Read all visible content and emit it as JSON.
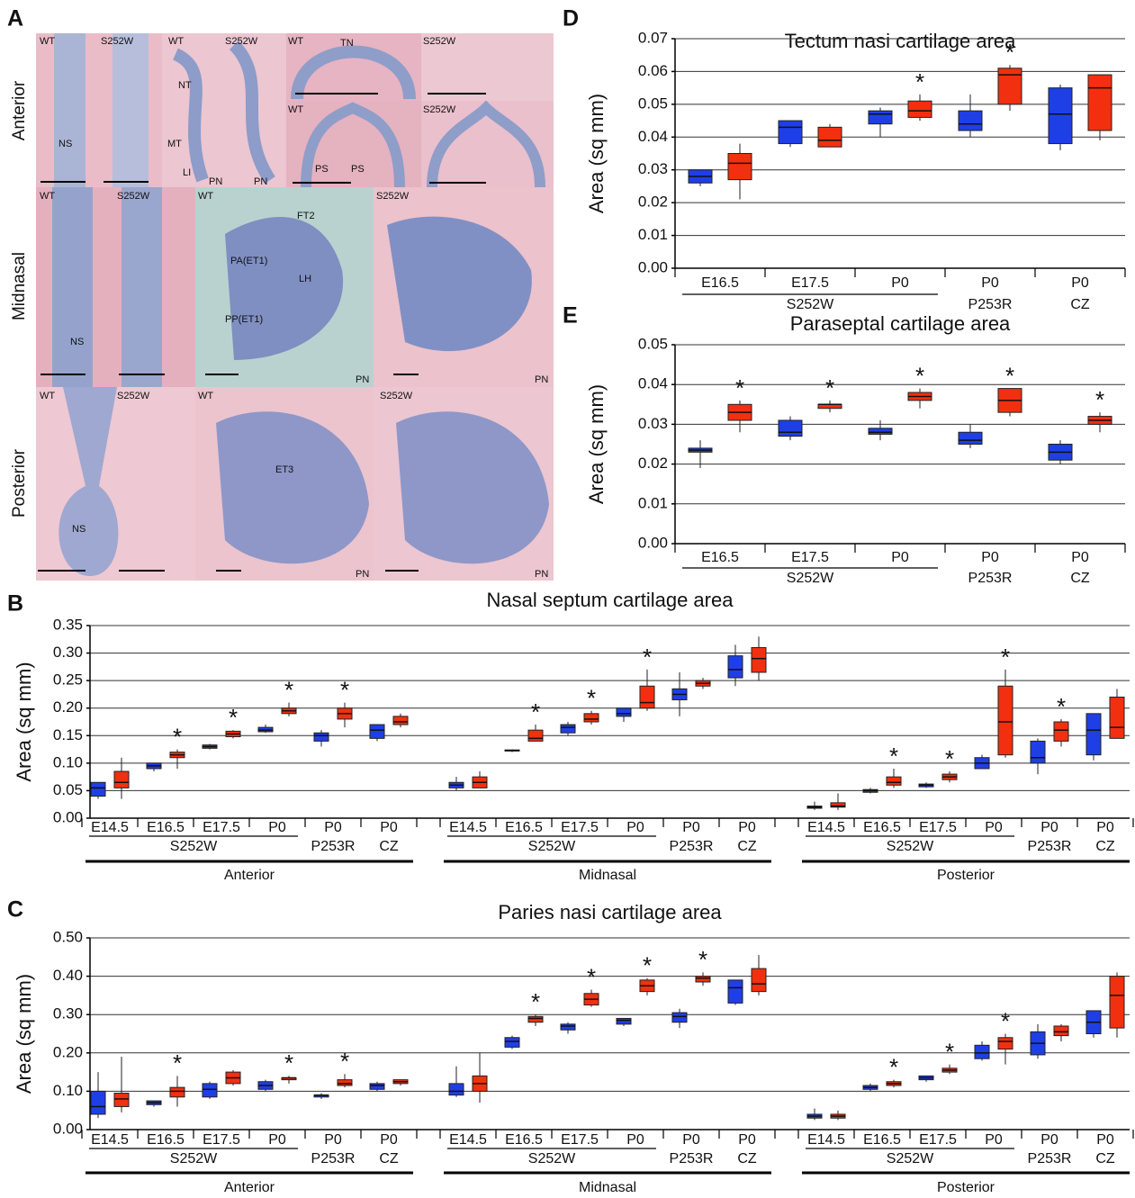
{
  "panel_a": {
    "panel": "A",
    "rows": [
      "Anterior",
      "Midnasal",
      "Posterior"
    ],
    "labels": [
      "WT",
      "S252W",
      "WT",
      "S252W",
      "WT",
      "TN",
      "S252W",
      "NT",
      "MT",
      "LI",
      "PN",
      "PN",
      "WT",
      "S252W",
      "PS",
      "PS",
      "NS",
      "WT",
      "S252W",
      "WT",
      "S252W",
      "FT2",
      "PA(ET1)",
      "LH",
      "PP(ET1)",
      "NS",
      "PN",
      "PN",
      "WT",
      "S252W",
      "WT",
      "S252W",
      "ET3",
      "NS",
      "PN",
      "PN"
    ]
  },
  "chart_data": [
    {
      "type": "box",
      "panel": "B",
      "title": "Nasal septum cartilage area",
      "ylabel": "Area (sq mm)",
      "ylim": [
        0,
        0.35
      ],
      "yticks": [
        {
          "value": 0,
          "label": "0.00"
        },
        0.05,
        {
          "value": 0.1,
          "label": "0.10"
        },
        0.15,
        {
          "value": 0.2,
          "label": "0.20"
        },
        0.25,
        {
          "value": 0.3,
          "label": "0.30"
        },
        0.35
      ],
      "grid": true,
      "categories": [
        "E14.5",
        "E16.5",
        "E17.5",
        "P0",
        "P0",
        "P0",
        "E14.5",
        "E16.5",
        "E17.5",
        "P0",
        "P0",
        "P0",
        "E14.5",
        "E16.5",
        "E17.5",
        "P0",
        "P0",
        "P0"
      ],
      "groups": [
        {
          "label": "S252W",
          "from": 0,
          "to": 3
        },
        {
          "label": "P253R",
          "from": 4,
          "to": 4
        },
        {
          "label": "CZ",
          "from": 5,
          "to": 5
        },
        {
          "label": "S252W",
          "from": 6,
          "to": 9
        },
        {
          "label": "P253R",
          "from": 10,
          "to": 10
        },
        {
          "label": "CZ",
          "from": 11,
          "to": 11
        },
        {
          "label": "S252W",
          "from": 12,
          "to": 15
        },
        {
          "label": "P253R",
          "from": 16,
          "to": 16
        },
        {
          "label": "CZ",
          "from": 17,
          "to": 17
        }
      ],
      "regions": [
        {
          "label": "Anterior",
          "from": 0,
          "to": 5
        },
        {
          "label": "Midnasal",
          "from": 6,
          "to": 11
        },
        {
          "label": "Posterior",
          "from": 12,
          "to": 17
        }
      ],
      "series": [
        {
          "color": "#1f3fe6",
          "values": [
            [
              0.035,
              0.04,
              0.055,
              0.065,
              0.065
            ],
            [
              0.085,
              0.09,
              0.095,
              0.1,
              0.1
            ],
            [
              0.125,
              0.127,
              0.13,
              0.133,
              0.135
            ],
            [
              0.155,
              0.157,
              0.16,
              0.165,
              0.17
            ],
            [
              0.13,
              0.14,
              0.15,
              0.155,
              0.16
            ],
            [
              0.14,
              0.145,
              0.16,
              0.17,
              0.17
            ],
            [
              0.05,
              0.055,
              0.06,
              0.065,
              0.075
            ],
            [
              0.12,
              0.122,
              0.123,
              0.124,
              0.125
            ],
            [
              0.15,
              0.155,
              0.165,
              0.17,
              0.175
            ],
            [
              0.175,
              0.185,
              0.19,
              0.2,
              0.2
            ],
            [
              0.185,
              0.215,
              0.225,
              0.235,
              0.265
            ],
            [
              0.24,
              0.255,
              0.27,
              0.295,
              0.315
            ],
            [
              0.015,
              0.018,
              0.02,
              0.022,
              0.03
            ],
            [
              0.045,
              0.047,
              0.05,
              0.052,
              0.055
            ],
            [
              0.055,
              0.057,
              0.06,
              0.062,
              0.065
            ],
            [
              0.09,
              0.09,
              0.1,
              0.11,
              0.115
            ],
            [
              0.08,
              0.1,
              0.11,
              0.14,
              0.145
            ],
            [
              0.105,
              0.115,
              0.16,
              0.19,
              0.19
            ]
          ]
        },
        {
          "color": "#f2300f",
          "values": [
            [
              0.035,
              0.055,
              0.065,
              0.085,
              0.11
            ],
            [
              0.09,
              0.11,
              0.115,
              0.12,
              0.125
            ],
            [
              0.145,
              0.148,
              0.153,
              0.158,
              0.16
            ],
            [
              0.185,
              0.19,
              0.195,
              0.2,
              0.21
            ],
            [
              0.165,
              0.18,
              0.19,
              0.2,
              0.21
            ],
            [
              0.165,
              0.17,
              0.175,
              0.185,
              0.19
            ],
            [
              0.055,
              0.055,
              0.065,
              0.075,
              0.085
            ],
            [
              0.14,
              0.14,
              0.145,
              0.16,
              0.17
            ],
            [
              0.17,
              0.175,
              0.18,
              0.19,
              0.195
            ],
            [
              0.195,
              0.2,
              0.21,
              0.24,
              0.27
            ],
            [
              0.235,
              0.24,
              0.245,
              0.25,
              0.255
            ],
            [
              0.25,
              0.265,
              0.29,
              0.31,
              0.33
            ],
            [
              0.015,
              0.02,
              0.022,
              0.028,
              0.045
            ],
            [
              0.055,
              0.06,
              0.065,
              0.075,
              0.09
            ],
            [
              0.065,
              0.07,
              0.075,
              0.08,
              0.085
            ],
            [
              0.11,
              0.115,
              0.175,
              0.24,
              0.27
            ],
            [
              0.13,
              0.14,
              0.16,
              0.175,
              0.18
            ],
            [
              0.145,
              0.145,
              0.165,
              0.22,
              0.235
            ]
          ],
          "stars": [
            null,
            "*",
            "*",
            "*",
            "*",
            null,
            null,
            "*",
            "*",
            "*",
            null,
            null,
            null,
            "*",
            "*",
            "*",
            "*",
            null
          ]
        }
      ]
    },
    {
      "type": "box",
      "panel": "C",
      "title": "Paries nasi cartilage area",
      "ylabel": "Area (sq mm)",
      "ylim": [
        0,
        0.5
      ],
      "yticks": [
        {
          "value": 0,
          "label": "0.00"
        },
        {
          "value": 0.1,
          "label": "0.10"
        },
        {
          "value": 0.2,
          "label": "0.20"
        },
        {
          "value": 0.3,
          "label": "0.30"
        },
        {
          "value": 0.4,
          "label": "0.40"
        },
        {
          "value": 0.5,
          "label": "0.50"
        }
      ],
      "grid": true,
      "categories": [
        "E14.5",
        "E16.5",
        "E17.5",
        "P0",
        "P0",
        "P0",
        "E14.5",
        "E16.5",
        "E17.5",
        "P0",
        "P0",
        "P0",
        "E14.5",
        "E16.5",
        "E17.5",
        "P0",
        "P0",
        "P0"
      ],
      "groups": [
        {
          "label": "S252W",
          "from": 0,
          "to": 3
        },
        {
          "label": "P253R",
          "from": 4,
          "to": 4
        },
        {
          "label": "CZ",
          "from": 5,
          "to": 5
        },
        {
          "label": "S252W",
          "from": 6,
          "to": 9
        },
        {
          "label": "P253R",
          "from": 10,
          "to": 10
        },
        {
          "label": "CZ",
          "from": 11,
          "to": 11
        },
        {
          "label": "S252W",
          "from": 12,
          "to": 15
        },
        {
          "label": "P253R",
          "from": 16,
          "to": 16
        },
        {
          "label": "CZ",
          "from": 17,
          "to": 17
        }
      ],
      "regions": [
        {
          "label": "Anterior",
          "from": 0,
          "to": 5
        },
        {
          "label": "Midnasal",
          "from": 6,
          "to": 11
        },
        {
          "label": "Posterior",
          "from": 12,
          "to": 17
        }
      ],
      "series": [
        {
          "color": "#1f3fe6",
          "values": [
            [
              0.03,
              0.04,
              0.06,
              0.1,
              0.15
            ],
            [
              0.06,
              0.065,
              0.07,
              0.075,
              0.075
            ],
            [
              0.08,
              0.085,
              0.105,
              0.12,
              0.125
            ],
            [
              0.1,
              0.105,
              0.115,
              0.125,
              0.13
            ],
            [
              0.08,
              0.085,
              0.09,
              0.09,
              0.095
            ],
            [
              0.1,
              0.105,
              0.115,
              0.12,
              0.125
            ],
            [
              0.085,
              0.09,
              0.1,
              0.12,
              0.165
            ],
            [
              0.21,
              0.215,
              0.23,
              0.24,
              0.245
            ],
            [
              0.25,
              0.26,
              0.27,
              0.275,
              0.28
            ],
            [
              0.27,
              0.275,
              0.285,
              0.29,
              0.29
            ],
            [
              0.265,
              0.28,
              0.295,
              0.305,
              0.315
            ],
            [
              0.325,
              0.33,
              0.37,
              0.39,
              0.39
            ],
            [
              0.025,
              0.03,
              0.035,
              0.04,
              0.055
            ],
            [
              0.1,
              0.105,
              0.11,
              0.115,
              0.12
            ],
            [
              0.125,
              0.13,
              0.135,
              0.14,
              0.14
            ],
            [
              0.18,
              0.185,
              0.2,
              0.22,
              0.23
            ],
            [
              0.185,
              0.195,
              0.225,
              0.255,
              0.275
            ],
            [
              0.24,
              0.25,
              0.28,
              0.31,
              0.31
            ]
          ]
        },
        {
          "color": "#f2300f",
          "values": [
            [
              0.045,
              0.06,
              0.08,
              0.095,
              0.19
            ],
            [
              0.06,
              0.085,
              0.1,
              0.11,
              0.14
            ],
            [
              0.115,
              0.12,
              0.135,
              0.15,
              0.155
            ],
            [
              0.12,
              0.13,
              0.135,
              0.135,
              0.14
            ],
            [
              0.11,
              0.115,
              0.12,
              0.13,
              0.145
            ],
            [
              0.115,
              0.12,
              0.125,
              0.13,
              0.13
            ],
            [
              0.07,
              0.1,
              0.12,
              0.14,
              0.2
            ],
            [
              0.27,
              0.28,
              0.29,
              0.295,
              0.3
            ],
            [
              0.32,
              0.325,
              0.34,
              0.355,
              0.365
            ],
            [
              0.35,
              0.36,
              0.375,
              0.39,
              0.395
            ],
            [
              0.375,
              0.385,
              0.395,
              0.4,
              0.41
            ],
            [
              0.35,
              0.36,
              0.38,
              0.42,
              0.455
            ],
            [
              0.025,
              0.03,
              0.035,
              0.04,
              0.05
            ],
            [
              0.11,
              0.115,
              0.12,
              0.125,
              0.13
            ],
            [
              0.145,
              0.15,
              0.155,
              0.16,
              0.17
            ],
            [
              0.17,
              0.21,
              0.23,
              0.24,
              0.25
            ],
            [
              0.23,
              0.245,
              0.255,
              0.27,
              0.275
            ],
            [
              0.24,
              0.265,
              0.35,
              0.4,
              0.41
            ]
          ],
          "stars": [
            null,
            "*",
            null,
            "*",
            "*",
            null,
            null,
            "*",
            "*",
            "*",
            "*",
            null,
            null,
            "*",
            "*",
            "*",
            null,
            null
          ]
        }
      ]
    },
    {
      "type": "box",
      "panel": "D",
      "title": "Tectum nasi cartilage area",
      "ylabel": "Area (sq mm)",
      "ylim": [
        0,
        0.07
      ],
      "yticks": [
        {
          "value": 0,
          "label": "0.00"
        },
        0.01,
        0.02,
        0.03,
        0.04,
        0.05,
        0.06,
        0.07
      ],
      "grid": true,
      "categories": [
        "E16.5",
        "E17.5",
        "P0",
        "P0",
        "P0"
      ],
      "groups": [
        {
          "label": "S252W",
          "from": 0,
          "to": 2
        },
        {
          "label": "P253R",
          "from": 3,
          "to": 3
        },
        {
          "label": "CZ",
          "from": 4,
          "to": 4
        }
      ],
      "series": [
        {
          "color": "#1f3fe6",
          "values": [
            [
              0.025,
              0.026,
              0.028,
              0.03,
              0.03
            ],
            [
              0.037,
              0.038,
              0.043,
              0.045,
              0.045
            ],
            [
              0.04,
              0.044,
              0.047,
              0.048,
              0.049
            ],
            [
              0.04,
              0.042,
              0.044,
              0.048,
              0.053
            ],
            [
              0.036,
              0.038,
              0.047,
              0.055,
              0.056
            ]
          ]
        },
        {
          "color": "#f2300f",
          "values": [
            [
              0.021,
              0.027,
              0.032,
              0.035,
              0.038
            ],
            [
              0.037,
              0.037,
              0.039,
              0.043,
              0.044
            ],
            [
              0.045,
              0.046,
              0.048,
              0.051,
              0.053
            ],
            [
              0.048,
              0.05,
              0.059,
              0.061,
              0.062
            ],
            [
              0.039,
              0.042,
              0.055,
              0.059,
              0.059
            ]
          ],
          "stars": [
            null,
            null,
            "*",
            "*",
            null
          ]
        }
      ]
    },
    {
      "type": "box",
      "panel": "E",
      "title": "Paraseptal cartilage area",
      "ylabel": "Area (sq mm)",
      "ylim": [
        0,
        0.05
      ],
      "yticks": [
        {
          "value": 0,
          "label": "0.00"
        },
        0.01,
        0.02,
        0.03,
        0.04,
        0.05
      ],
      "grid": true,
      "categories": [
        "E16.5",
        "E17.5",
        "P0",
        "P0",
        "P0"
      ],
      "groups": [
        {
          "label": "S252W",
          "from": 0,
          "to": 2
        },
        {
          "label": "P253R",
          "from": 3,
          "to": 3
        },
        {
          "label": "CZ",
          "from": 4,
          "to": 4
        }
      ],
      "series": [
        {
          "color": "#1f3fe6",
          "values": [
            [
              0.019,
              0.023,
              0.0235,
              0.024,
              0.026
            ],
            [
              0.026,
              0.027,
              0.028,
              0.031,
              0.032
            ],
            [
              0.026,
              0.0275,
              0.028,
              0.029,
              0.031
            ],
            [
              0.024,
              0.025,
              0.026,
              0.028,
              0.03
            ],
            [
              0.02,
              0.021,
              0.023,
              0.025,
              0.026
            ]
          ]
        },
        {
          "color": "#f2300f",
          "values": [
            [
              0.028,
              0.031,
              0.033,
              0.035,
              0.036
            ],
            [
              0.033,
              0.034,
              0.035,
              0.035,
              0.036
            ],
            [
              0.034,
              0.036,
              0.037,
              0.038,
              0.039
            ],
            [
              0.032,
              0.033,
              0.036,
              0.039,
              0.039
            ],
            [
              0.028,
              0.03,
              0.031,
              0.032,
              0.033
            ]
          ],
          "stars": [
            "*",
            "*",
            "*",
            "*",
            "*"
          ]
        }
      ]
    }
  ]
}
